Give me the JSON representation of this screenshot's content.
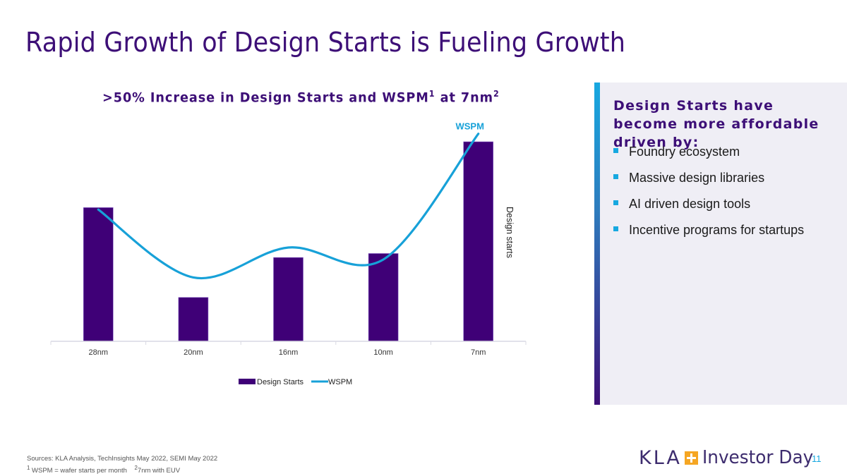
{
  "slide": {
    "title": "Rapid Growth of Design Starts is Fueling Growth",
    "page_number": "11"
  },
  "chart_title": {
    "main": ">50% Increase in Design Starts and WSPM",
    "sup1": "1",
    "mid": " at 7nm",
    "sup2": "2"
  },
  "chart_data": {
    "type": "bar",
    "title": ">50% Increase in Design Starts and WSPM¹ at 7nm²",
    "categories": [
      "28nm",
      "20nm",
      "16nm",
      "10nm",
      "7nm"
    ],
    "series": [
      {
        "name": "Design Starts",
        "type": "bar",
        "color": "#3f0077",
        "values": [
          67,
          22,
          42,
          44,
          100
        ]
      },
      {
        "name": "WSPM",
        "type": "line",
        "smooth": true,
        "color": "#17a1d8",
        "values": [
          66,
          32,
          47,
          41,
          104
        ]
      }
    ],
    "xlabel": "",
    "ylabel": "Design starts",
    "ylabel_position": "right",
    "ylim": [
      0,
      105
    ],
    "y_units": "relative (7nm Design Starts = 100)",
    "y_ticks_shown": false,
    "grid": false,
    "legend": {
      "position": "bottom",
      "entries": [
        "Design Starts",
        "WSPM"
      ]
    },
    "annotations": [
      {
        "text": "WSPM",
        "near": "7nm line end",
        "color": "#17a1d8"
      }
    ]
  },
  "side_panel": {
    "heading": "Design Starts have become more affordable driven by:",
    "bullets": [
      "Foundry ecosystem",
      "Massive design libraries",
      "AI driven design tools",
      "Incentive programs for startups"
    ],
    "bullet_color": "#17a8e0",
    "accent_gradient": [
      "#17a8e0",
      "#3d0f77"
    ]
  },
  "footer": {
    "sources_line1": "Sources: KLA Analysis, TechInsights May 2022, SEMI May 2022",
    "sources_line2_sup1": "1",
    "sources_line2_a": " WSPM = wafer starts per month",
    "sources_line2_sup2": "2",
    "sources_line2_b": "7nm with EUV",
    "logo_text": "KLA",
    "event_text": "Investor Day"
  },
  "colors": {
    "brand_purple": "#3d0f77",
    "accent_blue": "#17a8e0",
    "logo_orange": "#f5a623"
  }
}
